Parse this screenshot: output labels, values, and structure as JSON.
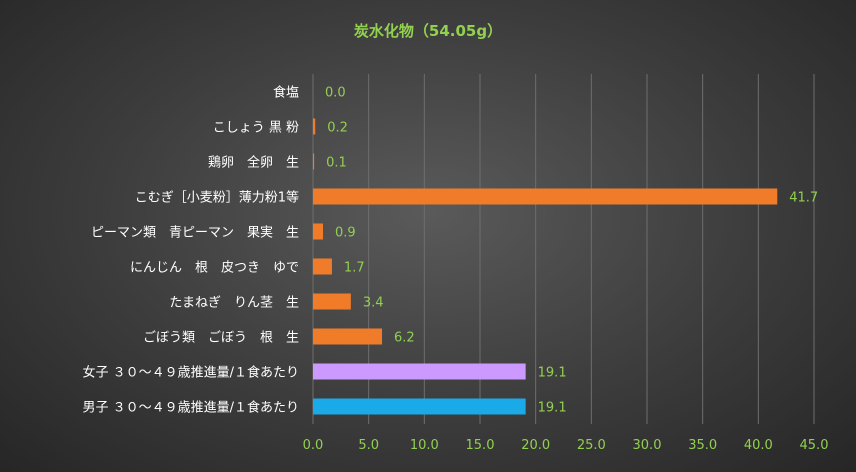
{
  "chart_data": {
    "type": "bar",
    "orientation": "horizontal",
    "title": "炭水化物（54.05g）",
    "categories": [
      "食塩",
      "こしょう 黒 粉",
      "鶏卵　全卵　生",
      "こむぎ［小麦粉］薄力粉1等",
      "ピーマン類　青ピーマン　果実　生",
      "にんじん　根　皮つき　ゆで",
      "たまねぎ　りん茎　生",
      "ごぼう類　ごぼう　根　生",
      "女子 ３０～４９歳推進量/１食あたり",
      "男子 ３０～４９歳推進量/１食あたり"
    ],
    "values": [
      0.0,
      0.2,
      0.1,
      41.7,
      0.9,
      1.7,
      3.4,
      6.2,
      19.1,
      19.1
    ],
    "value_labels": [
      "0.0",
      "0.2",
      "0.1",
      "41.7",
      "0.9",
      "1.7",
      "3.4",
      "6.2",
      "19.1",
      "19.1"
    ],
    "bar_colors": [
      "#f07c2a",
      "#f07c2a",
      "#f07c2a",
      "#f07c2a",
      "#f07c2a",
      "#f07c2a",
      "#f07c2a",
      "#f07c2a",
      "#cc99ff",
      "#1aaae8"
    ],
    "xlim": [
      0,
      45
    ],
    "xticks": [
      "0.0",
      "5.0",
      "10.0",
      "15.0",
      "20.0",
      "25.0",
      "30.0",
      "35.0",
      "40.0",
      "45.0"
    ],
    "grid": true,
    "legend": "none"
  }
}
